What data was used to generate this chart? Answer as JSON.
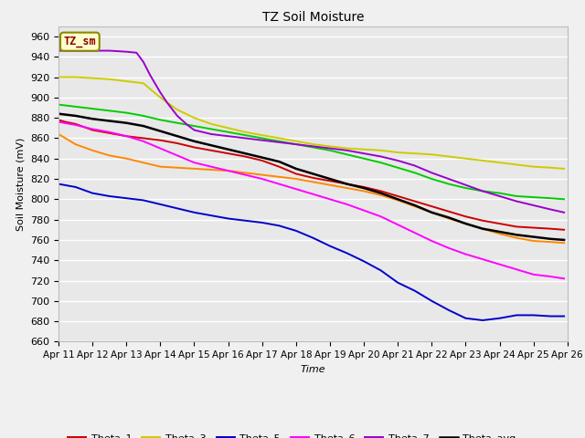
{
  "title": "TZ Soil Moisture",
  "ylabel": "Soil Moisture (mV)",
  "xlabel": "Time",
  "legend_label": "TZ_sm",
  "x_start": 11,
  "x_end": 26,
  "x_ticks": [
    11,
    12,
    13,
    14,
    15,
    16,
    17,
    18,
    19,
    20,
    21,
    22,
    23,
    24,
    25,
    26
  ],
  "x_tick_labels": [
    "Apr 11",
    "Apr 12",
    "Apr 13",
    "Apr 14",
    "Apr 15",
    "Apr 16",
    "Apr 17",
    "Apr 18",
    "Apr 19",
    "Apr 20",
    "Apr 21",
    "Apr 22",
    "Apr 23",
    "Apr 24",
    "Apr 25",
    "Apr 26"
  ],
  "ylim": [
    660,
    970
  ],
  "y_ticks": [
    660,
    680,
    700,
    720,
    740,
    760,
    780,
    800,
    820,
    840,
    860,
    880,
    900,
    920,
    940,
    960
  ],
  "series": {
    "Theta_1": {
      "color": "#cc0000",
      "points": [
        [
          11,
          878
        ],
        [
          11.2,
          876
        ],
        [
          11.5,
          874
        ],
        [
          12,
          868
        ],
        [
          12.5,
          865
        ],
        [
          13,
          862
        ],
        [
          13.5,
          860
        ],
        [
          14,
          858
        ],
        [
          14.5,
          855
        ],
        [
          15,
          851
        ],
        [
          15.5,
          848
        ],
        [
          16,
          845
        ],
        [
          16.5,
          842
        ],
        [
          17,
          838
        ],
        [
          17.5,
          832
        ],
        [
          18,
          825
        ],
        [
          18.5,
          821
        ],
        [
          19,
          818
        ],
        [
          19.5,
          815
        ],
        [
          20,
          812
        ],
        [
          20.5,
          808
        ],
        [
          21,
          803
        ],
        [
          21.5,
          798
        ],
        [
          22,
          793
        ],
        [
          22.5,
          788
        ],
        [
          23,
          783
        ],
        [
          23.5,
          779
        ],
        [
          24,
          776
        ],
        [
          24.5,
          773
        ],
        [
          25,
          772
        ],
        [
          25.5,
          771
        ],
        [
          25.9,
          770
        ]
      ]
    },
    "Theta_2": {
      "color": "#ff8800",
      "points": [
        [
          11,
          864
        ],
        [
          11.2,
          860
        ],
        [
          11.5,
          854
        ],
        [
          12,
          848
        ],
        [
          12.5,
          843
        ],
        [
          13,
          840
        ],
        [
          13.5,
          836
        ],
        [
          14,
          832
        ],
        [
          14.5,
          831
        ],
        [
          15,
          830
        ],
        [
          15.5,
          829
        ],
        [
          16,
          828
        ],
        [
          16.5,
          826
        ],
        [
          17,
          824
        ],
        [
          17.5,
          822
        ],
        [
          18,
          820
        ],
        [
          18.5,
          817
        ],
        [
          19,
          814
        ],
        [
          19.5,
          811
        ],
        [
          20,
          808
        ],
        [
          20.5,
          804
        ],
        [
          21,
          799
        ],
        [
          21.5,
          793
        ],
        [
          22,
          787
        ],
        [
          22.5,
          781
        ],
        [
          23,
          776
        ],
        [
          23.5,
          771
        ],
        [
          24,
          766
        ],
        [
          24.5,
          762
        ],
        [
          25,
          759
        ],
        [
          25.5,
          758
        ],
        [
          25.9,
          757
        ]
      ]
    },
    "Theta_3": {
      "color": "#cccc00",
      "points": [
        [
          11,
          920
        ],
        [
          11.5,
          920
        ],
        [
          12,
          919
        ],
        [
          12.5,
          918
        ],
        [
          13,
          916
        ],
        [
          13.5,
          914
        ],
        [
          14,
          900
        ],
        [
          14.5,
          888
        ],
        [
          15,
          880
        ],
        [
          15.5,
          874
        ],
        [
          16,
          870
        ],
        [
          16.5,
          866
        ],
        [
          17,
          863
        ],
        [
          17.5,
          860
        ],
        [
          18,
          857
        ],
        [
          18.5,
          854
        ],
        [
          19,
          852
        ],
        [
          19.5,
          850
        ],
        [
          20,
          849
        ],
        [
          20.5,
          848
        ],
        [
          21,
          846
        ],
        [
          21.5,
          845
        ],
        [
          22,
          844
        ],
        [
          22.5,
          842
        ],
        [
          23,
          840
        ],
        [
          23.5,
          838
        ],
        [
          24,
          836
        ],
        [
          24.5,
          834
        ],
        [
          25,
          832
        ],
        [
          25.5,
          831
        ],
        [
          25.9,
          830
        ]
      ]
    },
    "Theta_4": {
      "color": "#00cc00",
      "points": [
        [
          11,
          893
        ],
        [
          11.5,
          891
        ],
        [
          12,
          889
        ],
        [
          12.5,
          887
        ],
        [
          13,
          885
        ],
        [
          13.5,
          882
        ],
        [
          14,
          878
        ],
        [
          14.5,
          875
        ],
        [
          15,
          872
        ],
        [
          15.5,
          869
        ],
        [
          16,
          866
        ],
        [
          16.5,
          863
        ],
        [
          17,
          860
        ],
        [
          17.5,
          857
        ],
        [
          18,
          854
        ],
        [
          18.5,
          851
        ],
        [
          19,
          848
        ],
        [
          19.5,
          844
        ],
        [
          20,
          840
        ],
        [
          20.5,
          836
        ],
        [
          21,
          831
        ],
        [
          21.5,
          826
        ],
        [
          22,
          820
        ],
        [
          22.5,
          815
        ],
        [
          23,
          811
        ],
        [
          23.5,
          808
        ],
        [
          24,
          806
        ],
        [
          24.5,
          803
        ],
        [
          25,
          802
        ],
        [
          25.5,
          801
        ],
        [
          25.9,
          800
        ]
      ]
    },
    "Theta_5": {
      "color": "#0000cc",
      "points": [
        [
          11,
          815
        ],
        [
          11.5,
          812
        ],
        [
          12,
          806
        ],
        [
          12.5,
          803
        ],
        [
          13,
          801
        ],
        [
          13.5,
          799
        ],
        [
          14,
          795
        ],
        [
          14.5,
          791
        ],
        [
          15,
          787
        ],
        [
          15.5,
          784
        ],
        [
          16,
          781
        ],
        [
          16.5,
          779
        ],
        [
          17,
          777
        ],
        [
          17.5,
          774
        ],
        [
          18,
          769
        ],
        [
          18.5,
          762
        ],
        [
          19,
          754
        ],
        [
          19.5,
          747
        ],
        [
          20,
          739
        ],
        [
          20.5,
          730
        ],
        [
          21,
          718
        ],
        [
          21.5,
          710
        ],
        [
          22,
          700
        ],
        [
          22.5,
          691
        ],
        [
          23,
          683
        ],
        [
          23.5,
          681
        ],
        [
          24,
          683
        ],
        [
          24.5,
          686
        ],
        [
          25,
          686
        ],
        [
          25.5,
          685
        ],
        [
          25.9,
          685
        ]
      ]
    },
    "Theta_6": {
      "color": "#ff00ff",
      "points": [
        [
          11,
          876
        ],
        [
          11.5,
          873
        ],
        [
          12,
          869
        ],
        [
          12.5,
          866
        ],
        [
          13,
          862
        ],
        [
          13.5,
          857
        ],
        [
          14,
          850
        ],
        [
          14.5,
          843
        ],
        [
          15,
          836
        ],
        [
          15.5,
          832
        ],
        [
          16,
          828
        ],
        [
          16.5,
          824
        ],
        [
          17,
          820
        ],
        [
          17.5,
          815
        ],
        [
          18,
          810
        ],
        [
          18.5,
          805
        ],
        [
          19,
          800
        ],
        [
          19.5,
          795
        ],
        [
          20,
          789
        ],
        [
          20.5,
          783
        ],
        [
          21,
          775
        ],
        [
          21.5,
          767
        ],
        [
          22,
          759
        ],
        [
          22.5,
          752
        ],
        [
          23,
          746
        ],
        [
          23.5,
          741
        ],
        [
          24,
          736
        ],
        [
          24.5,
          731
        ],
        [
          25,
          726
        ],
        [
          25.5,
          724
        ],
        [
          25.9,
          722
        ]
      ]
    },
    "Theta_7": {
      "color": "#9900cc",
      "points": [
        [
          11,
          946
        ],
        [
          11.5,
          946
        ],
        [
          12,
          946
        ],
        [
          12.5,
          946
        ],
        [
          13,
          945
        ],
        [
          13.3,
          944
        ],
        [
          13.5,
          935
        ],
        [
          13.7,
          922
        ],
        [
          14,
          905
        ],
        [
          14.2,
          895
        ],
        [
          14.5,
          882
        ],
        [
          14.8,
          873
        ],
        [
          15,
          868
        ],
        [
          15.5,
          864
        ],
        [
          16,
          862
        ],
        [
          16.5,
          860
        ],
        [
          17,
          858
        ],
        [
          17.5,
          856
        ],
        [
          18,
          854
        ],
        [
          18.5,
          852
        ],
        [
          19,
          850
        ],
        [
          19.5,
          848
        ],
        [
          20,
          845
        ],
        [
          20.5,
          842
        ],
        [
          21,
          838
        ],
        [
          21.5,
          833
        ],
        [
          22,
          826
        ],
        [
          22.5,
          820
        ],
        [
          23,
          814
        ],
        [
          23.5,
          808
        ],
        [
          24,
          803
        ],
        [
          24.5,
          798
        ],
        [
          25,
          794
        ],
        [
          25.5,
          790
        ],
        [
          25.9,
          787
        ]
      ]
    },
    "Theta_avg": {
      "color": "#000000",
      "points": [
        [
          11,
          884
        ],
        [
          11.5,
          882
        ],
        [
          12,
          879
        ],
        [
          12.5,
          877
        ],
        [
          13,
          875
        ],
        [
          13.5,
          872
        ],
        [
          14,
          867
        ],
        [
          14.5,
          862
        ],
        [
          15,
          857
        ],
        [
          15.5,
          853
        ],
        [
          16,
          849
        ],
        [
          16.5,
          845
        ],
        [
          17,
          841
        ],
        [
          17.5,
          837
        ],
        [
          18,
          830
        ],
        [
          18.5,
          825
        ],
        [
          19,
          820
        ],
        [
          19.5,
          815
        ],
        [
          20,
          811
        ],
        [
          20.5,
          806
        ],
        [
          21,
          800
        ],
        [
          21.5,
          794
        ],
        [
          22,
          787
        ],
        [
          22.5,
          782
        ],
        [
          23,
          776
        ],
        [
          23.5,
          771
        ],
        [
          24,
          768
        ],
        [
          24.5,
          765
        ],
        [
          25,
          763
        ],
        [
          25.5,
          761
        ],
        [
          25.9,
          760
        ]
      ]
    }
  }
}
